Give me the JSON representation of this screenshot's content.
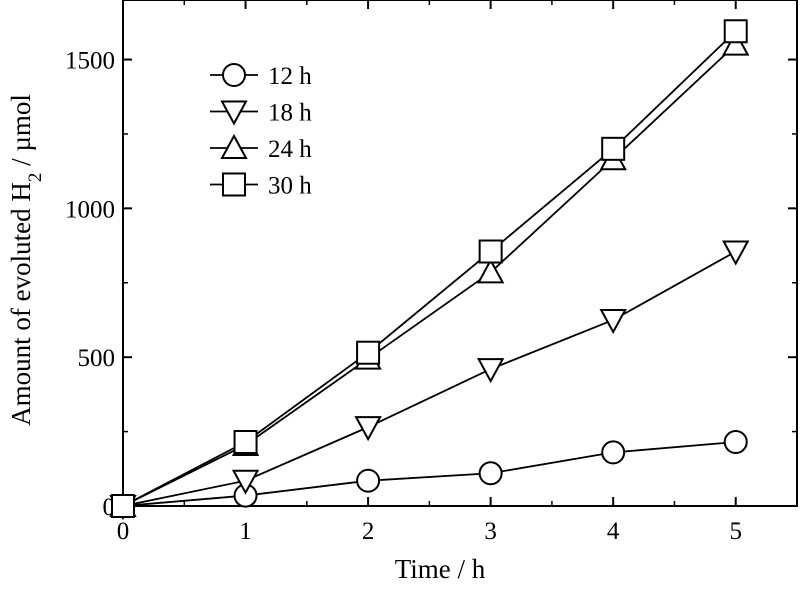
{
  "chart_data": {
    "type": "line",
    "title": "",
    "xlabel": "Time / h",
    "ylabel": {
      "prefix": "Amount of evoluted H",
      "subscript": "2",
      "suffix": " / µmol"
    },
    "xlim": [
      0,
      5.5
    ],
    "ylim": [
      0,
      1700
    ],
    "xticks": [
      0,
      1,
      2,
      3,
      4,
      5
    ],
    "yticks": [
      0,
      500,
      1000,
      1500
    ],
    "grid": false,
    "legend_position": "top-left",
    "x": [
      0,
      1,
      2,
      3,
      4,
      5
    ],
    "series": [
      {
        "name": "12 h",
        "marker": "circle",
        "values": [
          0,
          35,
          85,
          110,
          180,
          215
        ]
      },
      {
        "name": "18 h",
        "marker": "triangle-down",
        "values": [
          0,
          85,
          265,
          460,
          625,
          855
        ]
      },
      {
        "name": "24 h",
        "marker": "triangle-up",
        "values": [
          0,
          205,
          495,
          785,
          1165,
          1550
        ]
      },
      {
        "name": "30 h",
        "marker": "square",
        "values": [
          0,
          215,
          515,
          855,
          1200,
          1595
        ]
      }
    ]
  }
}
